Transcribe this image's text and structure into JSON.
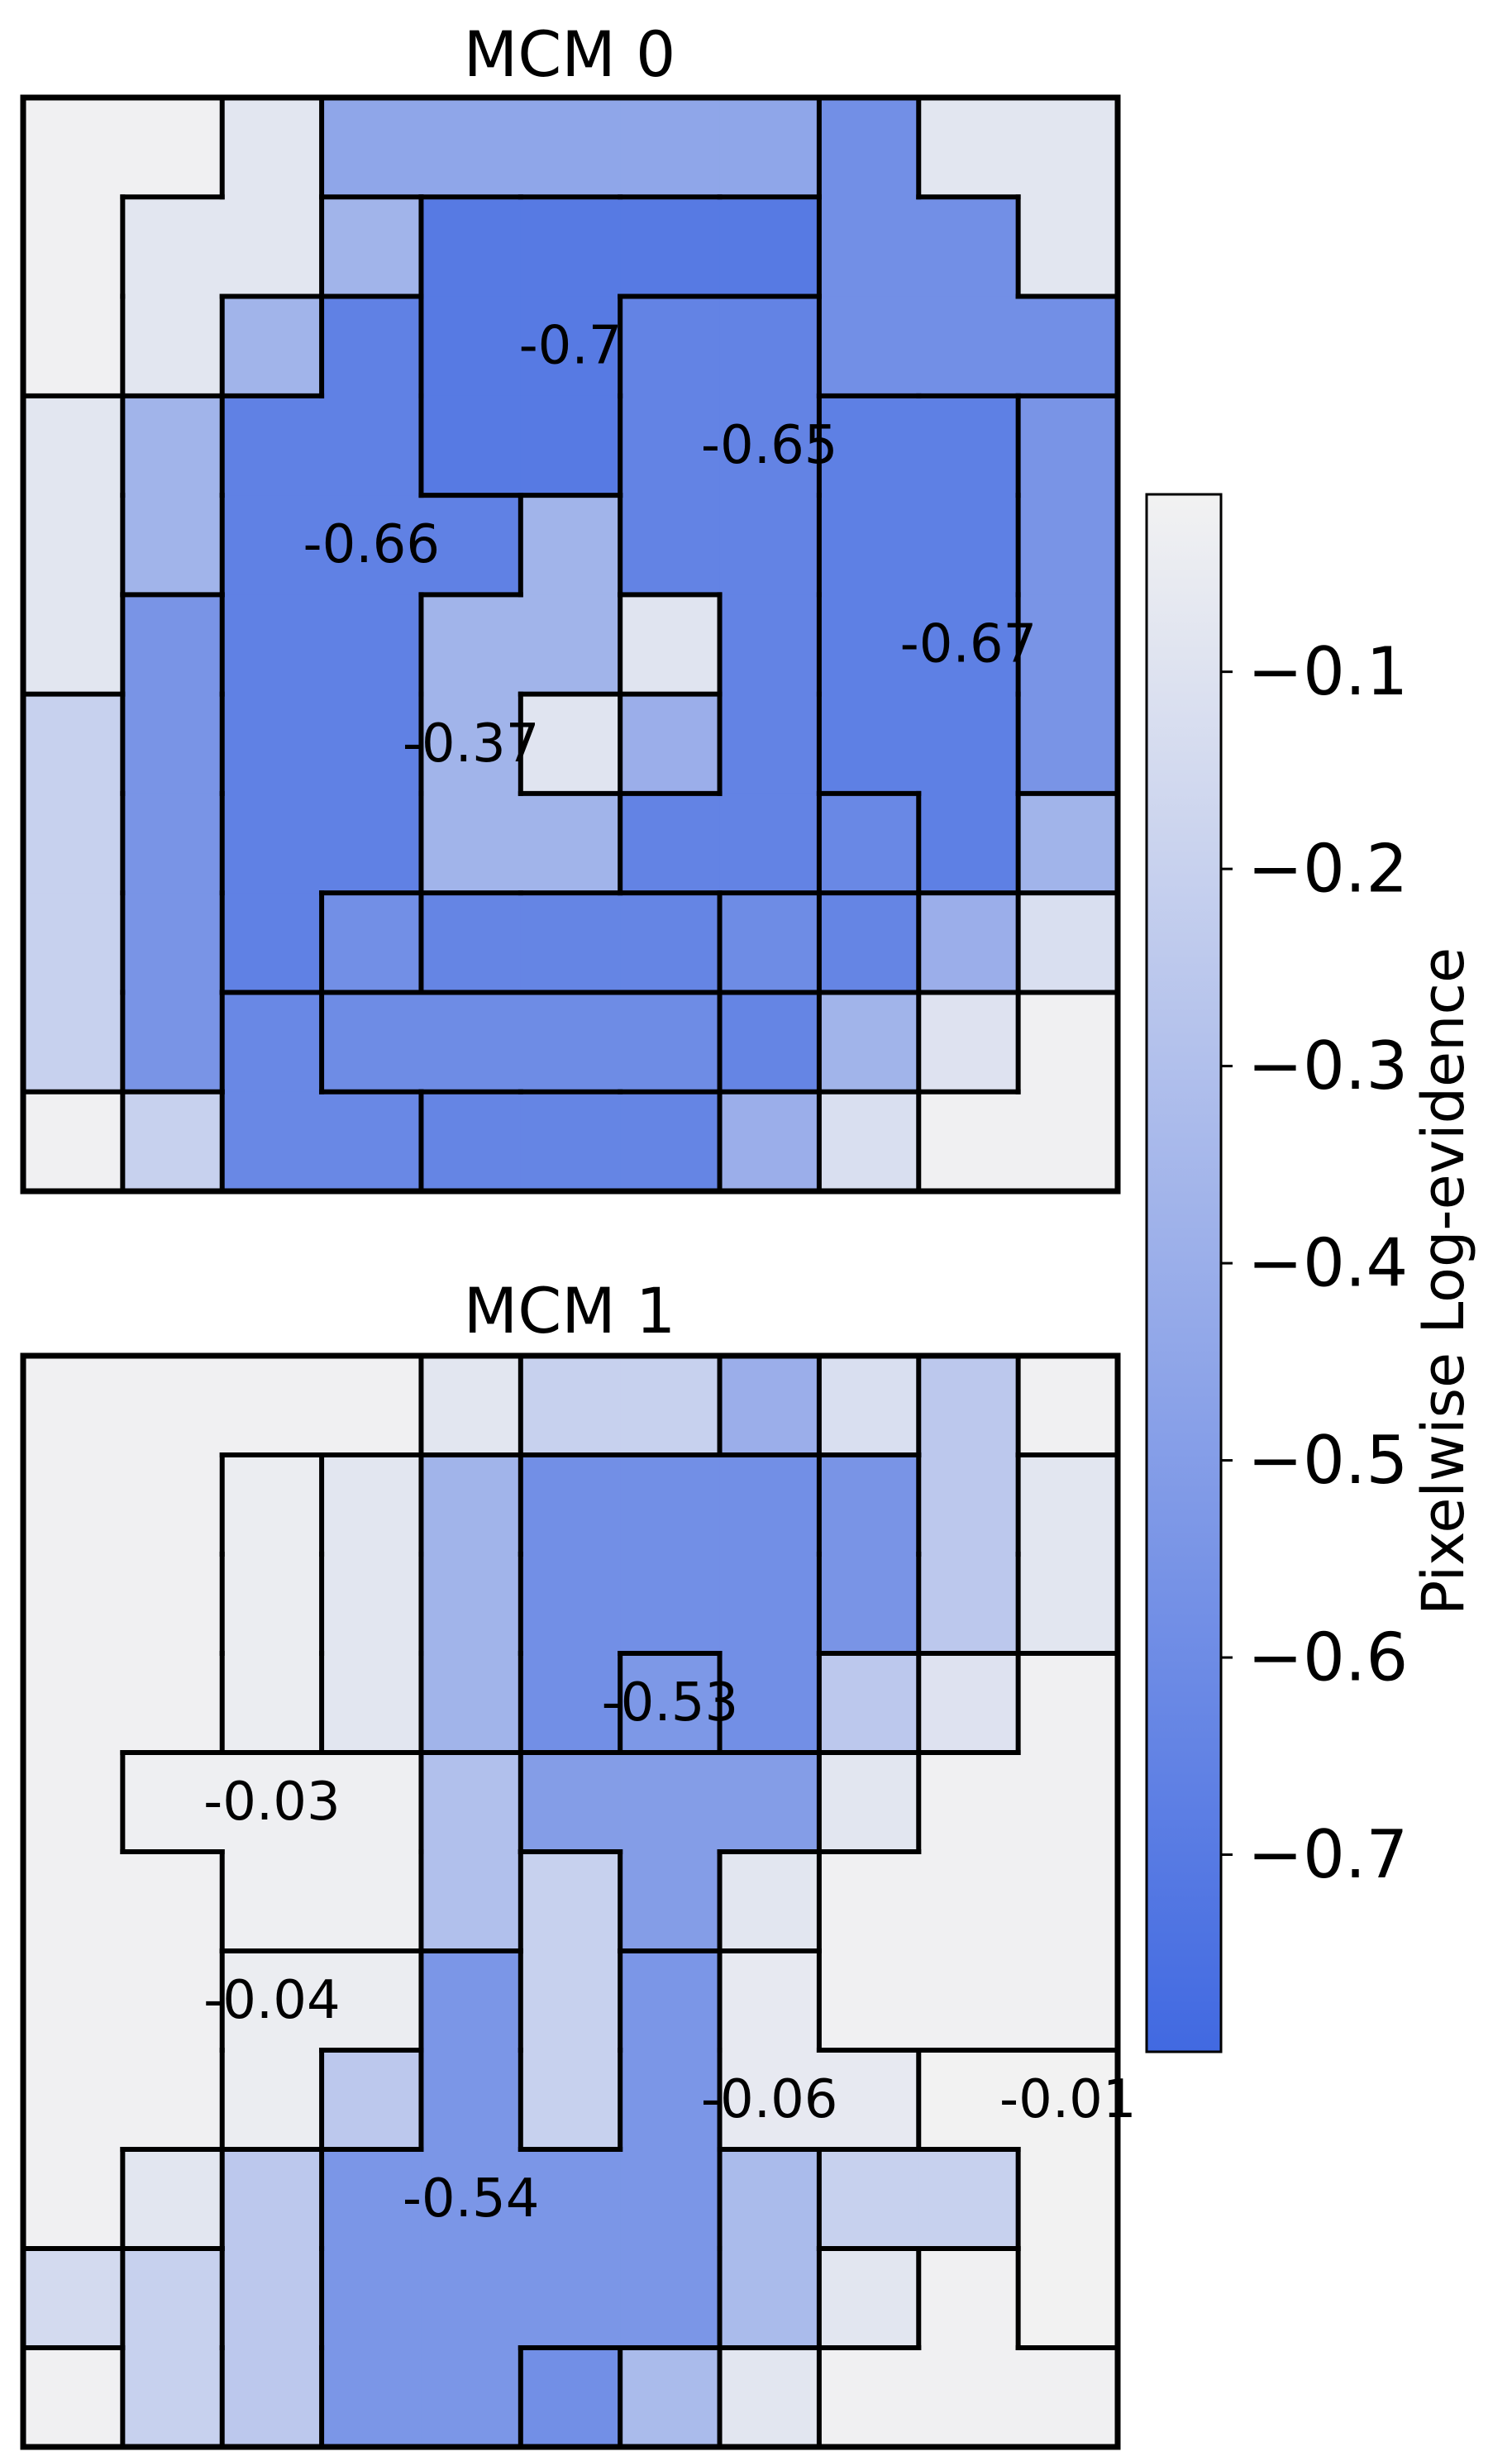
{
  "chart_data": [
    {
      "type": "heatmap",
      "title": "MCM 0",
      "grid": [
        [
          -0.02,
          -0.02,
          -0.08,
          -0.45,
          -0.45,
          -0.45,
          -0.45,
          -0.45,
          -0.58,
          -0.08,
          -0.08
        ],
        [
          -0.02,
          -0.08,
          -0.08,
          -0.37,
          -0.7,
          -0.7,
          -0.7,
          -0.7,
          -0.58,
          -0.58,
          -0.08
        ],
        [
          -0.02,
          -0.08,
          -0.37,
          -0.66,
          -0.7,
          -0.7,
          -0.65,
          -0.65,
          -0.58,
          -0.58,
          -0.58
        ],
        [
          -0.08,
          -0.37,
          -0.66,
          -0.66,
          -0.7,
          -0.7,
          -0.65,
          -0.65,
          -0.67,
          -0.67,
          -0.55
        ],
        [
          -0.08,
          -0.37,
          -0.66,
          -0.66,
          -0.66,
          -0.37,
          -0.65,
          -0.65,
          -0.67,
          -0.67,
          -0.55
        ],
        [
          -0.08,
          -0.55,
          -0.66,
          -0.66,
          -0.37,
          -0.37,
          -0.09,
          -0.65,
          -0.67,
          -0.67,
          -0.55
        ],
        [
          -0.2,
          -0.55,
          -0.66,
          -0.66,
          -0.37,
          -0.09,
          -0.4,
          -0.65,
          -0.67,
          -0.67,
          -0.55
        ],
        [
          -0.2,
          -0.55,
          -0.66,
          -0.66,
          -0.37,
          -0.37,
          -0.65,
          -0.65,
          -0.62,
          -0.67,
          -0.37
        ],
        [
          -0.2,
          -0.55,
          -0.66,
          -0.58,
          -0.64,
          -0.64,
          -0.64,
          -0.6,
          -0.64,
          -0.4,
          -0.12
        ],
        [
          -0.2,
          -0.55,
          -0.62,
          -0.6,
          -0.6,
          -0.6,
          -0.6,
          -0.64,
          -0.37,
          -0.1,
          -0.02
        ],
        [
          -0.02,
          -0.2,
          -0.62,
          -0.62,
          -0.64,
          -0.64,
          -0.64,
          -0.4,
          -0.12,
          -0.02,
          -0.02
        ]
      ],
      "annotations": [
        {
          "label": "-0.7",
          "row": 2,
          "col": 5
        },
        {
          "label": "-0.65",
          "row": 3,
          "col": 7
        },
        {
          "label": "-0.66",
          "row": 4,
          "col": 3
        },
        {
          "label": "-0.67",
          "row": 5,
          "col": 9
        },
        {
          "label": "-0.37",
          "row": 6,
          "col": 4
        }
      ]
    },
    {
      "type": "heatmap",
      "title": "MCM 1",
      "grid": [
        [
          -0.02,
          -0.02,
          -0.02,
          -0.02,
          -0.08,
          -0.2,
          -0.2,
          -0.4,
          -0.12,
          -0.25,
          -0.02
        ],
        [
          -0.02,
          -0.02,
          -0.04,
          -0.08,
          -0.37,
          -0.58,
          -0.58,
          -0.58,
          -0.55,
          -0.25,
          -0.08
        ],
        [
          -0.02,
          -0.02,
          -0.04,
          -0.08,
          -0.37,
          -0.58,
          -0.58,
          -0.58,
          -0.55,
          -0.25,
          -0.08
        ],
        [
          -0.02,
          -0.02,
          -0.04,
          -0.08,
          -0.37,
          -0.58,
          -0.53,
          -0.58,
          -0.25,
          -0.1,
          -0.02
        ],
        [
          -0.02,
          -0.03,
          -0.03,
          -0.03,
          -0.3,
          -0.5,
          -0.5,
          -0.5,
          -0.08,
          -0.02,
          -0.02
        ],
        [
          -0.02,
          -0.02,
          -0.03,
          -0.03,
          -0.3,
          -0.2,
          -0.5,
          -0.08,
          -0.02,
          -0.02,
          -0.02
        ],
        [
          -0.02,
          -0.02,
          -0.04,
          -0.04,
          -0.54,
          -0.2,
          -0.54,
          -0.06,
          -0.02,
          -0.02,
          -0.02
        ],
        [
          -0.02,
          -0.02,
          -0.04,
          -0.25,
          -0.54,
          -0.2,
          -0.54,
          -0.06,
          -0.06,
          -0.01,
          -0.01
        ],
        [
          -0.02,
          -0.08,
          -0.25,
          -0.54,
          -0.54,
          -0.54,
          -0.54,
          -0.33,
          -0.2,
          -0.2,
          -0.01
        ],
        [
          -0.15,
          -0.2,
          -0.25,
          -0.54,
          -0.54,
          -0.54,
          -0.54,
          -0.33,
          -0.08,
          -0.02,
          -0.01
        ],
        [
          -0.02,
          -0.2,
          -0.25,
          -0.54,
          -0.54,
          -0.58,
          -0.33,
          -0.08,
          -0.02,
          -0.02,
          -0.02
        ]
      ],
      "annotations": [
        {
          "label": "-0.53",
          "row": 3,
          "col": 6
        },
        {
          "label": "-0.03",
          "row": 4,
          "col": 2
        },
        {
          "label": "-0.04",
          "row": 6,
          "col": 2
        },
        {
          "label": "-0.06",
          "row": 7,
          "col": 7
        },
        {
          "label": "-0.01",
          "row": 7,
          "col": 10
        },
        {
          "label": "-0.54",
          "row": 8,
          "col": 4
        }
      ]
    }
  ],
  "colorbar": {
    "label": "Pixelwise Log-evidence",
    "vmin": -0.8,
    "vmax": -0.01,
    "ticks": [
      -0.1,
      -0.2,
      -0.3,
      -0.4,
      -0.5,
      -0.6,
      -0.7
    ],
    "tick_labels": [
      "−0.1",
      "−0.2",
      "−0.3",
      "−0.4",
      "−0.5",
      "−0.6",
      "−0.7"
    ],
    "color_low": "#4169E1",
    "color_high": "#F2F2F2"
  }
}
